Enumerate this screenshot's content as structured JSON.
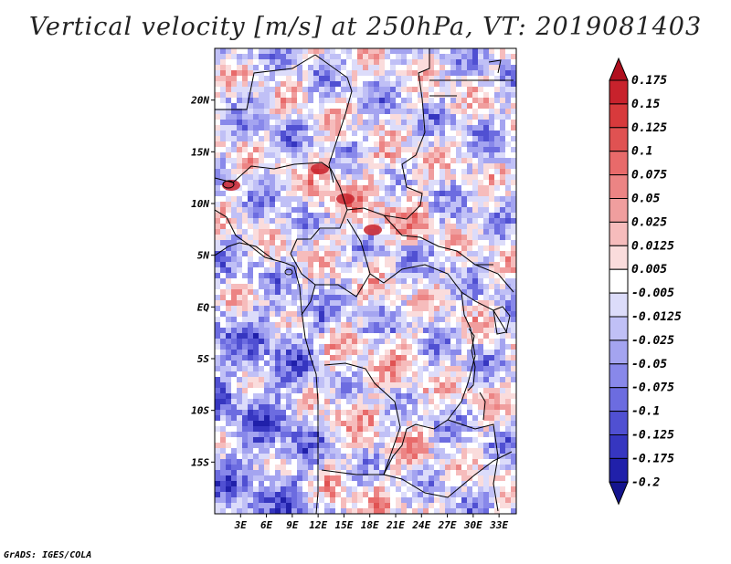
{
  "title": "Vertical velocity [m/s] at 250hPa, VT: 2019081403",
  "credit": "GrADS: IGES/COLA",
  "map": {
    "lon_range": [
      0,
      35
    ],
    "lat_range": [
      -20,
      25
    ],
    "lon_ticks": [
      "3E",
      "6E",
      "9E",
      "12E",
      "15E",
      "18E",
      "21E",
      "24E",
      "27E",
      "30E",
      "33E"
    ],
    "lon_tick_values": [
      3,
      6,
      9,
      12,
      15,
      18,
      21,
      24,
      27,
      30,
      33
    ],
    "lat_ticks": [
      "20N",
      "15N",
      "10N",
      "5N",
      "EQ",
      "5S",
      "10S",
      "15S"
    ],
    "lat_tick_values": [
      20,
      15,
      10,
      5,
      0,
      -5,
      -10,
      -15
    ]
  },
  "colorbar": {
    "labels": [
      "0.175",
      "0.15",
      "0.125",
      "0.1",
      "0.075",
      "0.05",
      "0.025",
      "0.0125",
      "0.005",
      "-0.005",
      "-0.0125",
      "-0.025",
      "-0.05",
      "-0.075",
      "-0.1",
      "-0.125",
      "-0.175",
      "-0.2"
    ],
    "colors": [
      "#b00f1e",
      "#c8222c",
      "#d83a3c",
      "#e05252",
      "#e86a6a",
      "#ec8484",
      "#f09e9e",
      "#f6bcbc",
      "#fadcdc",
      "#ffffff",
      "#dcdcfa",
      "#c0c0f6",
      "#a4a4f0",
      "#8888ea",
      "#6c6ce0",
      "#5050d2",
      "#3636c0",
      "#2020aa",
      "#14148e"
    ],
    "top_color": "#b00f1e",
    "bottom_color": "#14148e"
  }
}
